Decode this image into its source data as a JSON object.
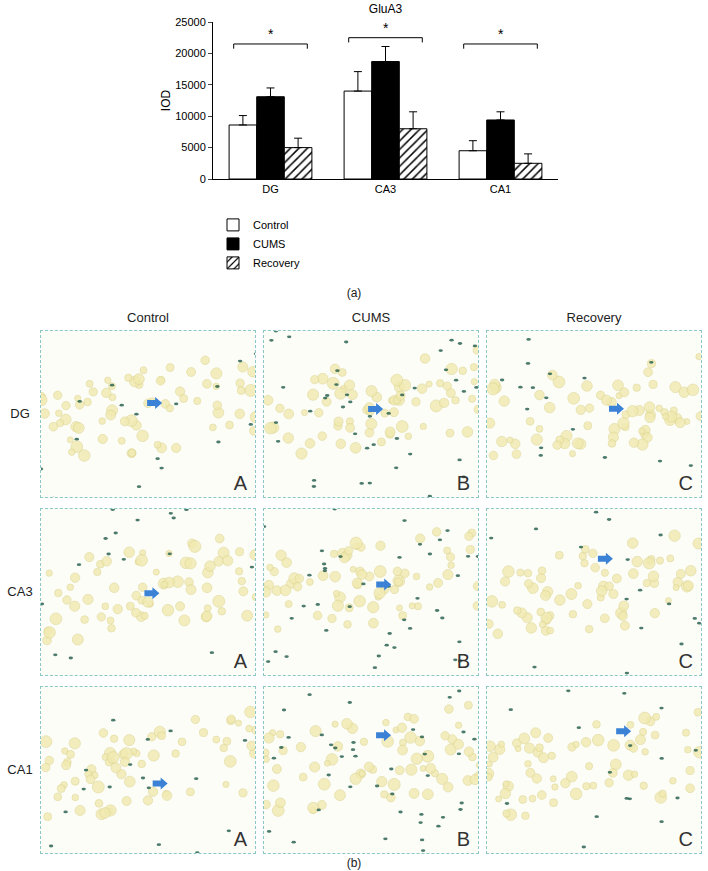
{
  "chart_data": {
    "type": "bar",
    "title": "GluA3",
    "y_label": "IOD",
    "categories": [
      "DG",
      "CA3",
      "CA1"
    ],
    "series": [
      {
        "name": "Control",
        "color": "#ffffff",
        "marker": "solid",
        "values": [
          8600,
          14000,
          4500
        ],
        "errors": [
          1500,
          3100,
          1600
        ]
      },
      {
        "name": "CUMS",
        "color": "#000000",
        "marker": "solid",
        "values": [
          13100,
          18700,
          9400
        ],
        "errors": [
          1400,
          2400,
          1300
        ]
      },
      {
        "name": "Recovery",
        "color": "#ffffff",
        "marker": "hatch",
        "values": [
          5000,
          8000,
          2500
        ],
        "errors": [
          1500,
          2700,
          1500
        ]
      }
    ],
    "ylim": [
      0,
      25000
    ],
    "yticks": [
      0,
      5000,
      10000,
      15000,
      20000,
      25000
    ],
    "grid": false,
    "legend": "bottom left",
    "significance": [
      {
        "category": "DG",
        "label": "*",
        "y": 21500
      },
      {
        "category": "CA3",
        "label": "*",
        "y": 22500
      },
      {
        "category": "CA1",
        "label": "*",
        "y": 21500
      }
    ]
  },
  "figure": {
    "panel_a_label": "(a)",
    "panel_b_label": "(b)",
    "columns": [
      "Control",
      "CUMS",
      "Recovery"
    ],
    "rows": [
      "DG",
      "CA3",
      "CA1"
    ],
    "letters": [
      "A",
      "B",
      "C"
    ]
  }
}
